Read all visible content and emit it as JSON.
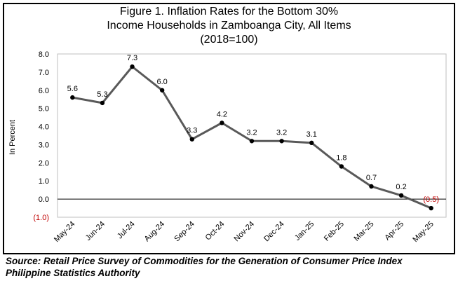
{
  "chart_data": {
    "type": "line",
    "title": [
      "Figure 1. Inflation Rates for the Bottom 30%",
      "Income Households in Zamboanga City, All Items",
      "(2018=100)"
    ],
    "ylabel": "In Percent",
    "xlabel": "",
    "categories": [
      "May-24",
      "Jun-24",
      "Jul-24",
      "Aug-24",
      "Sep-24",
      "Oct-24",
      "Nov-24",
      "Dec-24",
      "Jan-25",
      "Feb-25",
      "Mar-25",
      "Apr-25",
      "May-25"
    ],
    "series": [
      {
        "values": [
          5.6,
          5.3,
          7.3,
          6.0,
          3.3,
          4.2,
          3.2,
          3.2,
          3.1,
          1.8,
          0.7,
          0.2,
          -0.5
        ]
      }
    ],
    "data_labels": [
      "5.6",
      "5.3",
      "7.3",
      "6.0",
      "3.3",
      "4.2",
      "3.2",
      "3.2",
      "3.1",
      "1.8",
      "0.7",
      "0.2",
      "(0.5)"
    ],
    "ylim": [
      -1.0,
      8.0
    ],
    "yticks": [
      -1.0,
      0.0,
      1.0,
      2.0,
      3.0,
      4.0,
      5.0,
      6.0,
      7.0,
      8.0
    ],
    "ytick_labels": [
      "(1.0)",
      "0.0",
      "1.0",
      "2.0",
      "3.0",
      "4.0",
      "5.0",
      "6.0",
      "7.0",
      "8.0"
    ],
    "grid": false,
    "legend": "none",
    "colors": {
      "line": "#595959",
      "marker": "#000000",
      "negative": "#c00000",
      "text": "#000000"
    }
  },
  "source": {
    "line1": "Source: Retail Price Survey of Commodities for the Generation of Consumer Price Index",
    "line2": "Philippine Statistics Authority"
  }
}
